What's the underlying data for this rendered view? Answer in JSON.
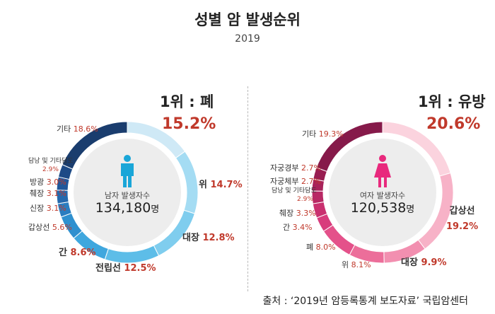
{
  "title": "성별 암 발생순위",
  "year": "2019",
  "source": "출처 : ‘2019년 암등록통계 보도자료’ 국립암센터",
  "chart_data": [
    {
      "type": "pie",
      "gender": "male",
      "rank_title": "1위 : 폐",
      "rank_pct": "15.2%",
      "center_label": "남자 발생자수",
      "center_count": "134,180",
      "center_unit": "명",
      "slices": [
        {
          "name": "폐",
          "value": 15.2,
          "label": "",
          "color": "#cfe9f6"
        },
        {
          "name": "위",
          "value": 14.7,
          "label": "위",
          "pct": "14.7%",
          "color": "#a4dcf3"
        },
        {
          "name": "대장",
          "value": 12.8,
          "label": "대장",
          "pct": "12.8%",
          "color": "#7fcdee"
        },
        {
          "name": "전립선",
          "value": 12.5,
          "label": "전립선",
          "pct": "12.5%",
          "color": "#5dbde8"
        },
        {
          "name": "간",
          "value": 8.6,
          "label": "간",
          "pct": "8.6%",
          "color": "#3fa7de"
        },
        {
          "name": "갑상선",
          "value": 5.6,
          "label": "갑상선",
          "pct": "5.6%",
          "color": "#2f90cf"
        },
        {
          "name": "신장",
          "value": 3.1,
          "label": "신장",
          "pct": "3.1%",
          "color": "#2a7dc0"
        },
        {
          "name": "췌장",
          "value": 3.1,
          "label": "췌장",
          "pct": "3.1%",
          "color": "#2569ad"
        },
        {
          "name": "방광",
          "value": 3.0,
          "label": "방광",
          "pct": "3.0%",
          "color": "#21579a"
        },
        {
          "name": "담낭 및 기타담도",
          "value": 2.9,
          "label": "담낭 및 기타담도",
          "pct": "2.9%",
          "color": "#1d4a86"
        },
        {
          "name": "기타",
          "value": 18.6,
          "label": "기타",
          "pct": "18.6%",
          "color": "#1a3d6e"
        }
      ]
    },
    {
      "type": "pie",
      "gender": "female",
      "rank_title": "1위 : 유방",
      "rank_pct": "20.6%",
      "center_label": "여자 발생자수",
      "center_count": "120,538",
      "center_unit": "명",
      "slices": [
        {
          "name": "유방",
          "value": 20.6,
          "label": "",
          "color": "#fbd3de"
        },
        {
          "name": "갑상선",
          "value": 19.2,
          "label": "갑상선",
          "pct": "19.2%",
          "color": "#f7b2c7"
        },
        {
          "name": "대장",
          "value": 9.9,
          "label": "대장",
          "pct": "9.9%",
          "color": "#f28fb0"
        },
        {
          "name": "위",
          "value": 8.1,
          "label": "위",
          "pct": "8.1%",
          "color": "#ec6e9a"
        },
        {
          "name": "폐",
          "value": 8.0,
          "label": "폐",
          "pct": "8.0%",
          "color": "#e4518a"
        },
        {
          "name": "간",
          "value": 3.4,
          "label": "간",
          "pct": "3.4%",
          "color": "#d83c7c"
        },
        {
          "name": "췌장",
          "value": 3.3,
          "label": "췌장",
          "pct": "3.3%",
          "color": "#c9306f"
        },
        {
          "name": "담낭 및 기타담도",
          "value": 2.9,
          "label": "담낭 및 기타담도",
          "pct": "2.9%",
          "color": "#b82864"
        },
        {
          "name": "자궁체부",
          "value": 2.7,
          "label": "자궁체부",
          "pct": "2.7%",
          "color": "#a8225a"
        },
        {
          "name": "자궁경부",
          "value": 2.7,
          "label": "자궁경부",
          "pct": "2.7%",
          "color": "#981d51"
        },
        {
          "name": "기타",
          "value": 19.3,
          "label": "기타",
          "pct": "19.3%",
          "color": "#861a4a"
        }
      ]
    }
  ]
}
